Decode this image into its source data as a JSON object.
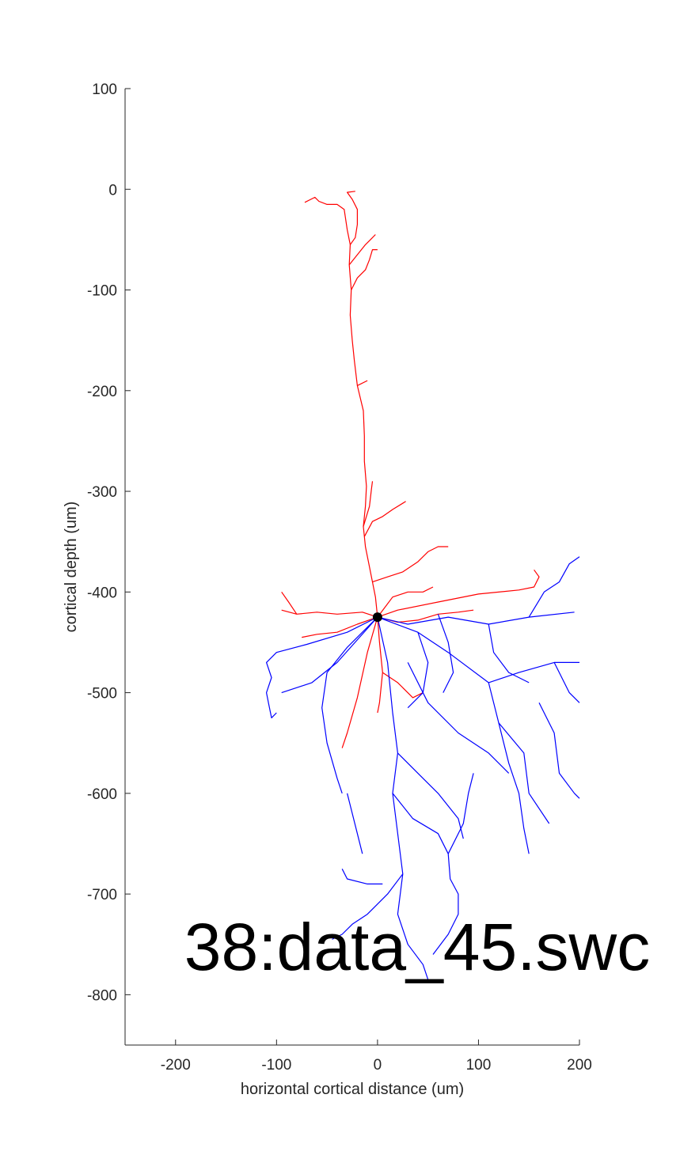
{
  "chart_data": {
    "type": "scatter",
    "title": "38:data_45.swc",
    "xlabel": "horizontal cortical distance (um)",
    "ylabel": "cortical depth (um)",
    "xlim": [
      -250,
      200
    ],
    "ylim": [
      -850,
      100
    ],
    "x_ticks": [
      "-200",
      "-100",
      "0",
      "100",
      "200"
    ],
    "y_ticks": [
      "100",
      "0",
      "-100",
      "-200",
      "-300",
      "-400",
      "-500",
      "-600",
      "-700",
      "-800"
    ],
    "grid": false,
    "soma": {
      "x": 0,
      "y": -425,
      "color": "#000000"
    },
    "series": [
      {
        "color": "#ff0000",
        "branches": [
          [
            [
              0,
              -425
            ],
            [
              -2,
              -405
            ],
            [
              -5,
              -390
            ],
            [
              -8,
              -375
            ],
            [
              -12,
              -355
            ],
            [
              -14,
              -335
            ],
            [
              -12,
              -315
            ],
            [
              -11,
              -295
            ],
            [
              -13,
              -270
            ],
            [
              -13,
              -245
            ],
            [
              -14,
              -220
            ],
            [
              -20,
              -195
            ],
            [
              -23,
              -170
            ],
            [
              -25,
              -150
            ],
            [
              -27,
              -125
            ],
            [
              -26,
              -100
            ],
            [
              -28,
              -75
            ],
            [
              -27,
              -55
            ],
            [
              -30,
              -40
            ],
            [
              -33,
              -20
            ],
            [
              -40,
              -15
            ],
            [
              -50,
              -15
            ],
            [
              -58,
              -12
            ],
            [
              -62,
              -8
            ],
            [
              -72,
              -13
            ]
          ],
          [
            [
              -28,
              -75
            ],
            [
              -20,
              -65
            ],
            [
              -12,
              -55
            ],
            [
              -7,
              -50
            ],
            [
              -2,
              -45
            ]
          ],
          [
            [
              -27,
              -55
            ],
            [
              -22,
              -48
            ],
            [
              -20,
              -35
            ],
            [
              -20,
              -20
            ],
            [
              -25,
              -10
            ],
            [
              -30,
              -3
            ],
            [
              -22,
              -2
            ]
          ],
          [
            [
              -26,
              -100
            ],
            [
              -20,
              -88
            ],
            [
              -12,
              -80
            ],
            [
              -8,
              -70
            ],
            [
              -5,
              -60
            ],
            [
              0,
              -60
            ]
          ],
          [
            [
              -20,
              -195
            ],
            [
              -10,
              -190
            ]
          ],
          [
            [
              -14,
              -335
            ],
            [
              -8,
              -315
            ],
            [
              -6,
              -298
            ],
            [
              -5,
              -290
            ]
          ],
          [
            [
              -13,
              -345
            ],
            [
              -5,
              -330
            ],
            [
              5,
              -325
            ],
            [
              15,
              -318
            ],
            [
              28,
              -310
            ]
          ],
          [
            [
              -5,
              -390
            ],
            [
              10,
              -385
            ],
            [
              25,
              -380
            ],
            [
              40,
              -370
            ],
            [
              50,
              -360
            ],
            [
              60,
              -355
            ],
            [
              70,
              -355
            ]
          ],
          [
            [
              0,
              -425
            ],
            [
              -15,
              -420
            ],
            [
              -40,
              -422
            ],
            [
              -60,
              -420
            ],
            [
              -80,
              -422
            ],
            [
              -95,
              -418
            ]
          ],
          [
            [
              -80,
              -422
            ],
            [
              -88,
              -410
            ],
            [
              -95,
              -400
            ]
          ],
          [
            [
              0,
              -425
            ],
            [
              20,
              -418
            ],
            [
              60,
              -410
            ],
            [
              100,
              -402
            ],
            [
              140,
              -398
            ],
            [
              155,
              -395
            ],
            [
              160,
              -385
            ],
            [
              155,
              -378
            ]
          ],
          [
            [
              0,
              -425
            ],
            [
              20,
              -430
            ],
            [
              40,
              -428
            ],
            [
              60,
              -422
            ],
            [
              80,
              -420
            ],
            [
              95,
              -418
            ]
          ],
          [
            [
              0,
              -425
            ],
            [
              -20,
              -432
            ],
            [
              -40,
              -440
            ],
            [
              -60,
              -442
            ],
            [
              -75,
              -445
            ]
          ],
          [
            [
              0,
              -425
            ],
            [
              2,
              -450
            ],
            [
              5,
              -480
            ],
            [
              2,
              -510
            ],
            [
              0,
              -520
            ]
          ],
          [
            [
              0,
              -425
            ],
            [
              -10,
              -460
            ],
            [
              -20,
              -505
            ],
            [
              -30,
              -540
            ],
            [
              -35,
              -555
            ]
          ],
          [
            [
              0,
              -425
            ],
            [
              15,
              -405
            ],
            [
              30,
              -400
            ],
            [
              45,
              -400
            ],
            [
              55,
              -395
            ]
          ],
          [
            [
              5,
              -480
            ],
            [
              20,
              -490
            ],
            [
              35,
              -505
            ],
            [
              45,
              -500
            ]
          ]
        ]
      },
      {
        "color": "#0000ff",
        "branches": [
          [
            [
              0,
              -425
            ],
            [
              30,
              -432
            ],
            [
              70,
              -425
            ],
            [
              110,
              -432
            ],
            [
              150,
              -425
            ],
            [
              195,
              -420
            ]
          ],
          [
            [
              0,
              -425
            ],
            [
              -30,
              -440
            ],
            [
              -70,
              -452
            ],
            [
              -100,
              -460
            ],
            [
              -110,
              -470
            ],
            [
              -105,
              -485
            ],
            [
              -110,
              -500
            ],
            [
              -108,
              -510
            ],
            [
              -105,
              -525
            ],
            [
              -100,
              -520
            ]
          ],
          [
            [
              0,
              -425
            ],
            [
              -30,
              -455
            ],
            [
              -50,
              -480
            ],
            [
              -55,
              -515
            ],
            [
              -50,
              -550
            ],
            [
              -40,
              -585
            ],
            [
              -35,
              -600
            ]
          ],
          [
            [
              0,
              -425
            ],
            [
              10,
              -470
            ],
            [
              15,
              -520
            ],
            [
              20,
              -560
            ],
            [
              15,
              -600
            ],
            [
              20,
              -640
            ],
            [
              25,
              -680
            ],
            [
              20,
              -720
            ],
            [
              30,
              -750
            ],
            [
              45,
              -770
            ],
            [
              50,
              -785
            ]
          ],
          [
            [
              15,
              -600
            ],
            [
              35,
              -625
            ],
            [
              60,
              -640
            ],
            [
              70,
              -660
            ],
            [
              72,
              -685
            ],
            [
              80,
              -700
            ],
            [
              80,
              -720
            ],
            [
              70,
              -740
            ],
            [
              55,
              -760
            ]
          ],
          [
            [
              25,
              -680
            ],
            [
              10,
              -700
            ],
            [
              -10,
              -720
            ],
            [
              -25,
              -730
            ],
            [
              -35,
              -740
            ],
            [
              -45,
              -745
            ]
          ],
          [
            [
              20,
              -560
            ],
            [
              40,
              -580
            ],
            [
              60,
              -600
            ],
            [
              80,
              -625
            ],
            [
              85,
              -645
            ]
          ],
          [
            [
              0,
              -425
            ],
            [
              40,
              -440
            ],
            [
              70,
              -460
            ],
            [
              110,
              -490
            ],
            [
              120,
              -530
            ],
            [
              145,
              -560
            ],
            [
              150,
              -600
            ],
            [
              170,
              -630
            ]
          ],
          [
            [
              110,
              -490
            ],
            [
              140,
              -480
            ],
            [
              175,
              -470
            ],
            [
              200,
              -470
            ]
          ],
          [
            [
              150,
              -425
            ],
            [
              165,
              -400
            ],
            [
              180,
              -390
            ],
            [
              190,
              -372
            ],
            [
              200,
              -365
            ]
          ],
          [
            [
              175,
              -470
            ],
            [
              190,
              -500
            ],
            [
              200,
              -510
            ]
          ],
          [
            [
              160,
              -510
            ],
            [
              175,
              -540
            ],
            [
              180,
              -580
            ],
            [
              195,
              -600
            ],
            [
              200,
              -605
            ]
          ],
          [
            [
              120,
              -530
            ],
            [
              130,
              -570
            ],
            [
              140,
              -600
            ],
            [
              145,
              -635
            ],
            [
              150,
              -660
            ]
          ],
          [
            [
              0,
              -425
            ],
            [
              -40,
              -470
            ],
            [
              -65,
              -490
            ],
            [
              -95,
              -500
            ]
          ],
          [
            [
              30,
              -470
            ],
            [
              50,
              -510
            ],
            [
              80,
              -540
            ],
            [
              110,
              -560
            ],
            [
              130,
              -580
            ]
          ],
          [
            [
              -30,
              -600
            ],
            [
              -20,
              -640
            ],
            [
              -15,
              -660
            ]
          ],
          [
            [
              5,
              -690
            ],
            [
              -10,
              -690
            ],
            [
              -30,
              -685
            ],
            [
              -35,
              -675
            ]
          ],
          [
            [
              70,
              -660
            ],
            [
              85,
              -630
            ],
            [
              90,
              -600
            ],
            [
              95,
              -580
            ]
          ],
          [
            [
              40,
              -440
            ],
            [
              50,
              -470
            ],
            [
              45,
              -500
            ],
            [
              30,
              -515
            ]
          ],
          [
            [
              110,
              -432
            ],
            [
              115,
              -460
            ],
            [
              130,
              -480
            ],
            [
              150,
              -490
            ]
          ],
          [
            [
              60,
              -422
            ],
            [
              70,
              -450
            ],
            [
              75,
              -480
            ],
            [
              65,
              -500
            ]
          ]
        ]
      }
    ]
  }
}
